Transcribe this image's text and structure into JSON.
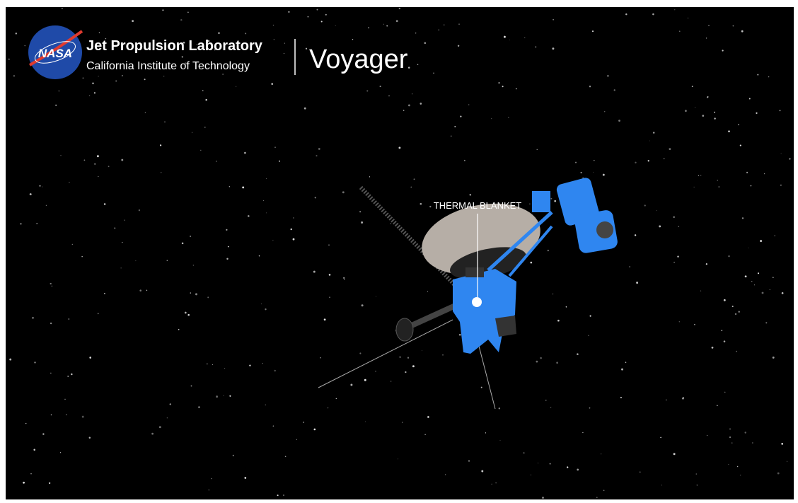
{
  "header": {
    "logo": "NASA",
    "org": "Jet Propulsion Laboratory",
    "institute": "California Institute of Technology",
    "title": "Voyager"
  },
  "annotation": {
    "label": "THERMAL BLANKET"
  }
}
